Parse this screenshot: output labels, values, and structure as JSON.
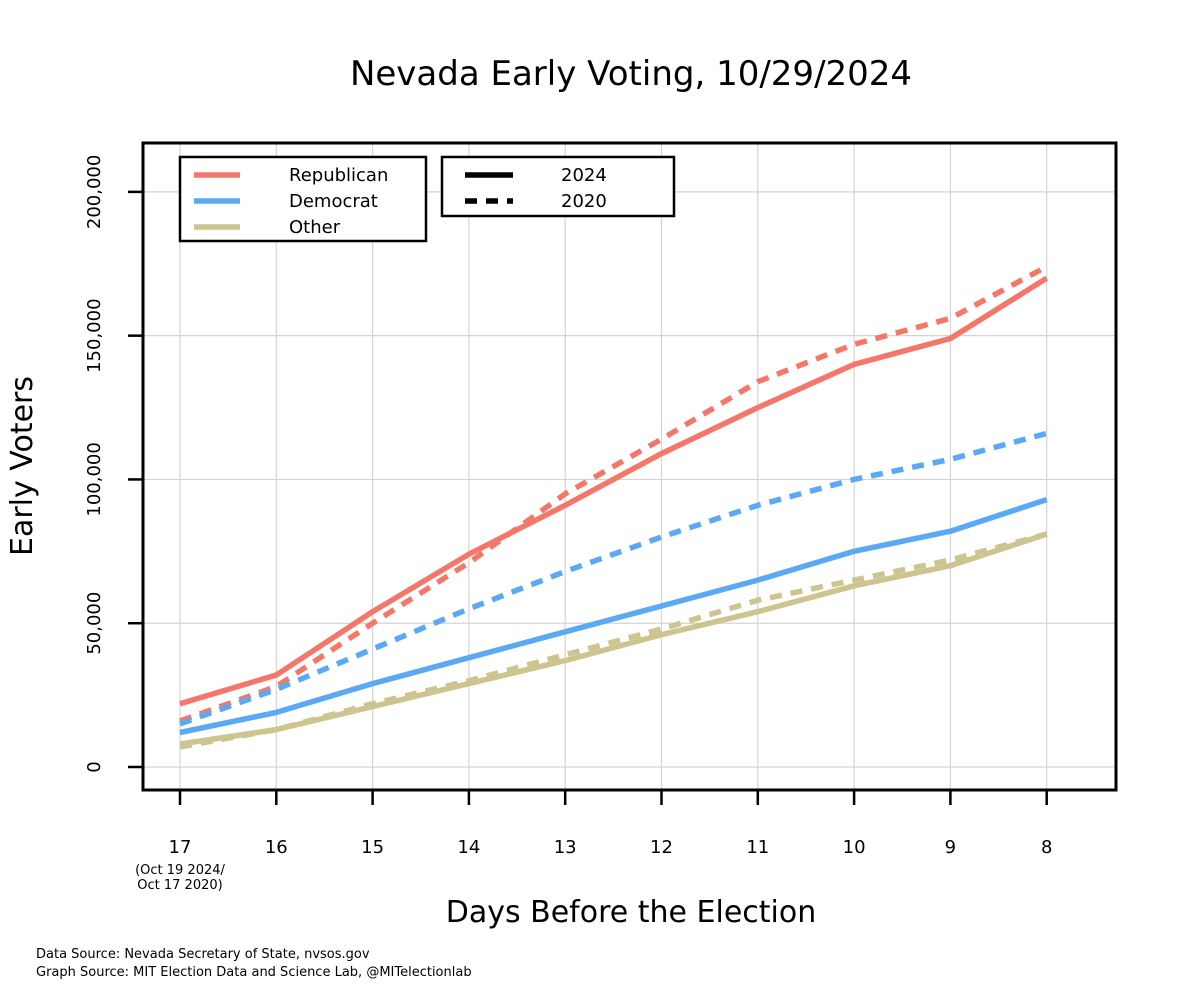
{
  "chart_data": {
    "type": "line",
    "title": "Nevada Early Voting, 10/29/2024",
    "xlabel": "Days Before the Election",
    "ylabel": "Early Voters",
    "x": [
      17,
      16,
      15,
      14,
      13,
      12,
      11,
      10,
      9,
      8
    ],
    "x_tick_labels": [
      "17",
      "16",
      "15",
      "14",
      "13",
      "12",
      "11",
      "10",
      "9",
      "8"
    ],
    "x_first_tick_note": [
      "(Oct 19 2024/",
      "Oct 17 2020)"
    ],
    "y_ticks": [
      0,
      50000,
      100000,
      150000,
      200000
    ],
    "y_tick_labels": [
      "0",
      "50,000",
      "100,000",
      "150,000",
      "200,000"
    ],
    "ylim": [
      -8000,
      217000
    ],
    "grid": true,
    "series": [
      {
        "name": "Republican",
        "year": "2024",
        "color": "#f4776a",
        "dash": "solid",
        "values": [
          22000,
          32000,
          54000,
          74000,
          91000,
          109000,
          125000,
          140000,
          149000,
          170000
        ]
      },
      {
        "name": "Republican",
        "year": "2020",
        "color": "#f4776a",
        "dash": "dashed",
        "values": [
          16000,
          28000,
          50000,
          71000,
          95000,
          114000,
          134000,
          147000,
          156000,
          174000
        ]
      },
      {
        "name": "Democrat",
        "year": "2024",
        "color": "#5ba8f5",
        "dash": "solid",
        "values": [
          12000,
          19000,
          29000,
          38000,
          47000,
          56000,
          65000,
          75000,
          82000,
          93000
        ]
      },
      {
        "name": "Democrat",
        "year": "2020",
        "color": "#5ba8f5",
        "dash": "dashed",
        "values": [
          15000,
          27000,
          41000,
          55000,
          68000,
          80000,
          91000,
          100000,
          107000,
          116000
        ]
      },
      {
        "name": "Other",
        "year": "2024",
        "color": "#cdc48f",
        "dash": "solid",
        "values": [
          8000,
          13000,
          21000,
          29000,
          37000,
          46000,
          54000,
          63000,
          70000,
          81000
        ]
      },
      {
        "name": "Other",
        "year": "2020",
        "color": "#cdc48f",
        "dash": "dashed",
        "values": [
          7000,
          13000,
          22000,
          30000,
          39000,
          48000,
          58000,
          65000,
          72000,
          81000
        ]
      }
    ],
    "legend_party": [
      {
        "label": "Republican",
        "color": "#f4776a"
      },
      {
        "label": "Democrat",
        "color": "#5ba8f5"
      },
      {
        "label": "Other",
        "color": "#cdc48f"
      }
    ],
    "legend_year": [
      {
        "label": "2024",
        "dash": "solid"
      },
      {
        "label": "2020",
        "dash": "dashed"
      }
    ],
    "legend_placement": "top-left"
  },
  "footer": {
    "data_source": "Data Source: Nevada Secretary of State, nvsos.gov",
    "graph_source": "Graph Source: MIT Election Data and Science Lab, @MITelectionlab"
  }
}
